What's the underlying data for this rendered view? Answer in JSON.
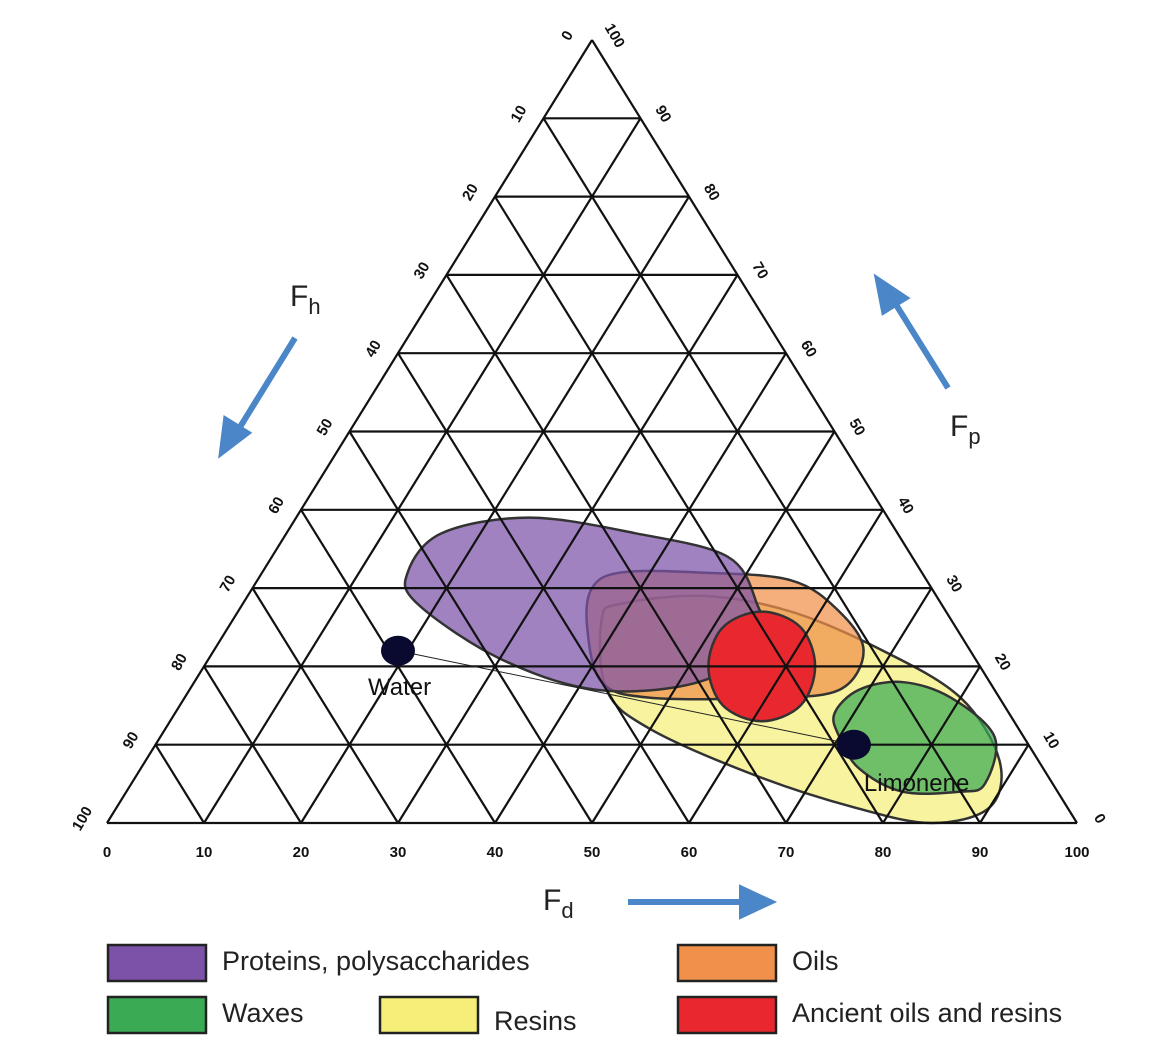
{
  "chart_data": {
    "type": "ternary",
    "grid": true,
    "axes": {
      "fd": {
        "symbol": "F",
        "subscript": "d",
        "ticks": [
          0,
          10,
          20,
          30,
          40,
          50,
          60,
          70,
          80,
          90,
          100
        ]
      },
      "fh": {
        "symbol": "F",
        "subscript": "h",
        "ticks": [
          0,
          10,
          20,
          30,
          40,
          50,
          60,
          70,
          80,
          90,
          100
        ]
      },
      "fp": {
        "symbol": "F",
        "subscript": "p",
        "ticks": [
          0,
          10,
          20,
          30,
          40,
          50,
          60,
          70,
          80,
          90,
          100
        ]
      }
    },
    "regions": [
      {
        "name": "Proteins, polysaccharides",
        "color": "#7b52a8",
        "fd": [
          15,
          16,
          24,
          36,
          47,
          53,
          56,
          52,
          42,
          30,
          18
        ],
        "fp": [
          32,
          37,
          39,
          37,
          34,
          28,
          23,
          18,
          17,
          21,
          28
        ]
      },
      {
        "name": "Oils",
        "color": "#f0904a",
        "fd": [
          35,
          37,
          45,
          55,
          62,
          67,
          67,
          60,
          48,
          42,
          37
        ],
        "fp": [
          30,
          32,
          32,
          31,
          27,
          22,
          17,
          16,
          16,
          18,
          25
        ]
      },
      {
        "name": "Waxes",
        "color": "#3aaa55",
        "fd": [
          68,
          69,
          73,
          79,
          86,
          88,
          86,
          80,
          74,
          70
        ],
        "fp": [
          14,
          17,
          18,
          16,
          11,
          5,
          4,
          4,
          7,
          11
        ]
      },
      {
        "name": "Resins",
        "color": "#f5ef7a",
        "fd": [
          38,
          39,
          47,
          57,
          69,
          80,
          88,
          90,
          85,
          76,
          64,
          50,
          43
        ],
        "fp": [
          26,
          28,
          29,
          27,
          22,
          16,
          8,
          2,
          0,
          2,
          6,
          12,
          17
        ]
      },
      {
        "name": "Ancient oils and resins",
        "color": "#e8282e",
        "fd": [
          54,
          59,
          63,
          64,
          61,
          56,
          52,
          51
        ],
        "fp": [
          27,
          25,
          20,
          15,
          13,
          15,
          20,
          25
        ]
      }
    ],
    "points": [
      {
        "name": "Water",
        "fd": 19,
        "fp": 22,
        "color": "#0a0a30"
      },
      {
        "name": "Limonene",
        "fd": 72,
        "fp": 10,
        "color": "#0a0a30"
      }
    ]
  }
}
